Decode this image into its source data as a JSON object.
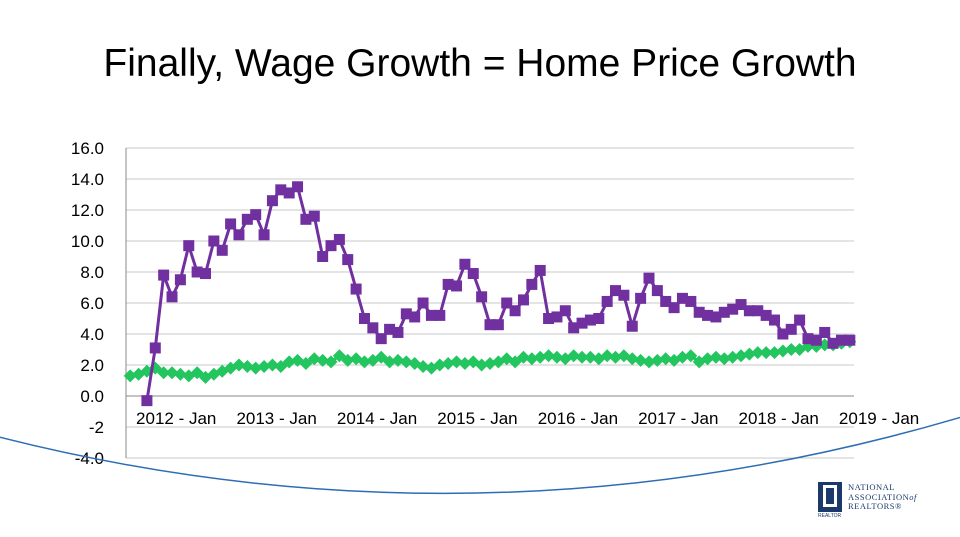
{
  "slide": {
    "title": "Finally, Wage Growth = Home Price Growth"
  },
  "logo": {
    "line1": "NATIONAL",
    "line2": "ASSOCIATION",
    "line2_suffix": "of",
    "line3": "REALTORS",
    "trademark": "®",
    "mark_caption": "REALTOR"
  },
  "colors": {
    "home_price": "#7030A0",
    "wage": "#22C55E",
    "gridline": "#C8C8C8",
    "arc": "#2E6DB4",
    "logo": "#1B3A6B"
  },
  "chart_data": {
    "type": "line",
    "title": "",
    "xlabel": "",
    "ylabel": "",
    "ylim": [
      -4,
      16
    ],
    "grid": true,
    "legend": "none",
    "y_tick_labels": [
      "16.0",
      "14.0",
      "12.0",
      "10.0",
      "8.0",
      "6.0",
      "4.0",
      "2.0",
      "0.0",
      "-2",
      "-4.0"
    ],
    "y_tick_values": [
      16,
      14,
      12,
      10,
      8,
      6,
      4,
      2,
      0,
      -2,
      -4
    ],
    "x_tick_labels": [
      "2012 - Jan",
      "2013 - Jan",
      "2014 - Jan",
      "2015 - Jan",
      "2016 - Jan",
      "2017 - Jan",
      "2018 - Jan",
      "2019 - Jan"
    ],
    "x_tick_index": [
      0,
      12,
      24,
      36,
      48,
      60,
      72,
      84
    ],
    "n_points": 87,
    "series": [
      {
        "name": "Home Price Growth",
        "color": "#7030A0",
        "marker": "square",
        "values": [
          -0.3,
          3.1,
          7.8,
          6.4,
          7.5,
          9.7,
          8.0,
          7.9,
          10.0,
          9.4,
          11.1,
          10.4,
          11.4,
          11.7,
          10.4,
          12.6,
          13.3,
          13.1,
          13.5,
          11.4,
          11.6,
          9.0,
          9.7,
          10.1,
          8.8,
          6.9,
          5.0,
          4.4,
          3.7,
          4.3,
          4.1,
          5.3,
          5.1,
          6.0,
          5.2,
          5.2,
          7.2,
          7.1,
          8.5,
          7.9,
          6.4,
          4.6,
          4.6,
          6.0,
          5.5,
          6.2,
          7.2,
          8.1,
          5.0,
          5.1,
          5.5,
          4.4,
          4.7,
          4.9,
          5.0,
          6.1,
          6.8,
          6.5,
          4.5,
          6.3,
          7.6,
          6.8,
          6.1,
          5.7,
          6.3,
          6.1,
          5.4,
          5.2,
          5.1,
          5.4,
          5.6,
          5.9,
          5.5,
          5.5,
          5.2,
          4.9,
          4.0,
          4.3,
          4.9,
          3.7,
          3.6,
          4.1,
          3.4,
          3.6,
          3.6
        ],
        "start_index": 2
      },
      {
        "name": "Wage Growth",
        "color": "#22C55E",
        "marker": "diamond",
        "values": [
          1.3,
          1.4,
          1.6,
          1.8,
          1.5,
          1.5,
          1.4,
          1.3,
          1.5,
          1.2,
          1.4,
          1.6,
          1.8,
          2.0,
          1.9,
          1.8,
          1.9,
          2.0,
          1.9,
          2.2,
          2.3,
          2.1,
          2.4,
          2.3,
          2.2,
          2.6,
          2.3,
          2.4,
          2.2,
          2.3,
          2.5,
          2.2,
          2.3,
          2.2,
          2.1,
          1.9,
          1.8,
          2.0,
          2.1,
          2.2,
          2.1,
          2.2,
          2.0,
          2.1,
          2.2,
          2.4,
          2.2,
          2.5,
          2.4,
          2.5,
          2.6,
          2.5,
          2.4,
          2.6,
          2.5,
          2.5,
          2.4,
          2.6,
          2.5,
          2.6,
          2.4,
          2.3,
          2.2,
          2.3,
          2.4,
          2.3,
          2.5,
          2.6,
          2.2,
          2.4,
          2.5,
          2.4,
          2.5,
          2.6,
          2.7,
          2.8,
          2.8,
          2.8,
          2.9,
          3.0,
          3.0,
          3.2,
          3.2,
          3.3,
          3.3,
          3.4,
          3.5
        ],
        "start_index": 0
      }
    ]
  }
}
